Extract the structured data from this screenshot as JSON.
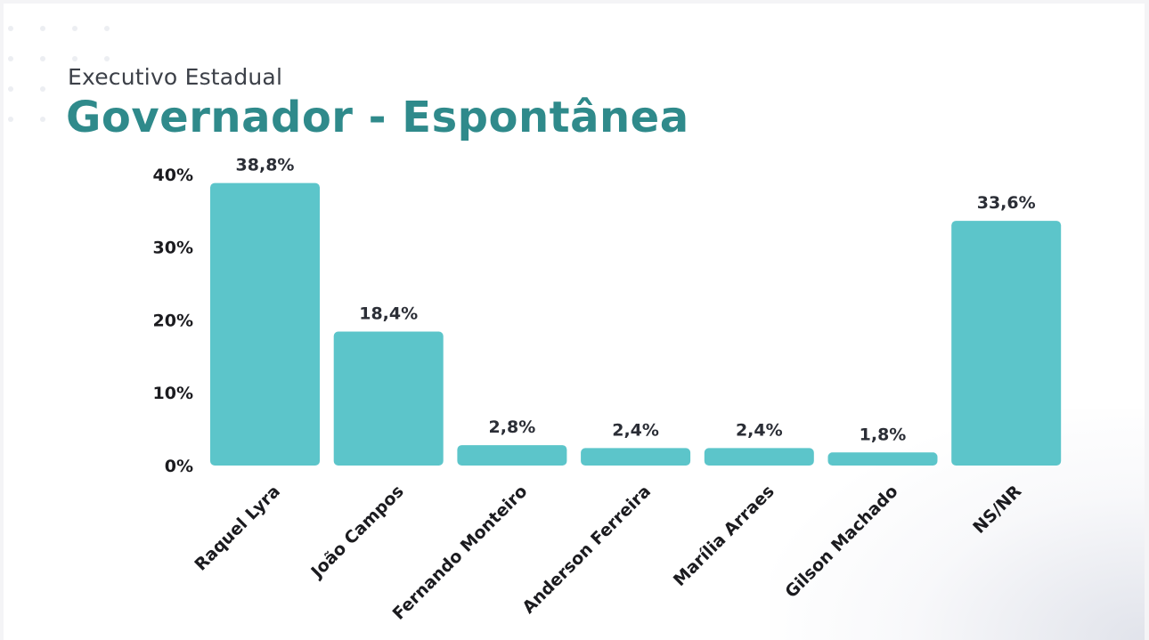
{
  "header": {
    "subtitle": "Executivo Estadual",
    "title": "Governador - Espontânea"
  },
  "colors": {
    "bar": "#5cc5ca",
    "title": "#2f8a8b"
  },
  "chart_data": {
    "type": "bar",
    "title": "Governador - Espontânea",
    "subtitle": "Executivo Estadual",
    "xlabel": "",
    "ylabel": "",
    "ylim": [
      0,
      40
    ],
    "y_ticks": [
      0,
      10,
      20,
      30,
      40
    ],
    "y_tick_labels": [
      "0%",
      "10%",
      "20%",
      "30%",
      "40%"
    ],
    "grid": false,
    "categories": [
      "Raquel Lyra",
      "João Campos",
      "Fernando Monteiro",
      "Anderson Ferreira",
      "Marília Arraes",
      "Gilson Machado",
      "NS/NR"
    ],
    "values": [
      38.8,
      18.4,
      2.8,
      2.4,
      2.4,
      1.8,
      33.6
    ],
    "data_labels": [
      "38,8%",
      "18,4%",
      "2,8%",
      "2,4%",
      "2,4%",
      "1,8%",
      "33,6%"
    ]
  }
}
